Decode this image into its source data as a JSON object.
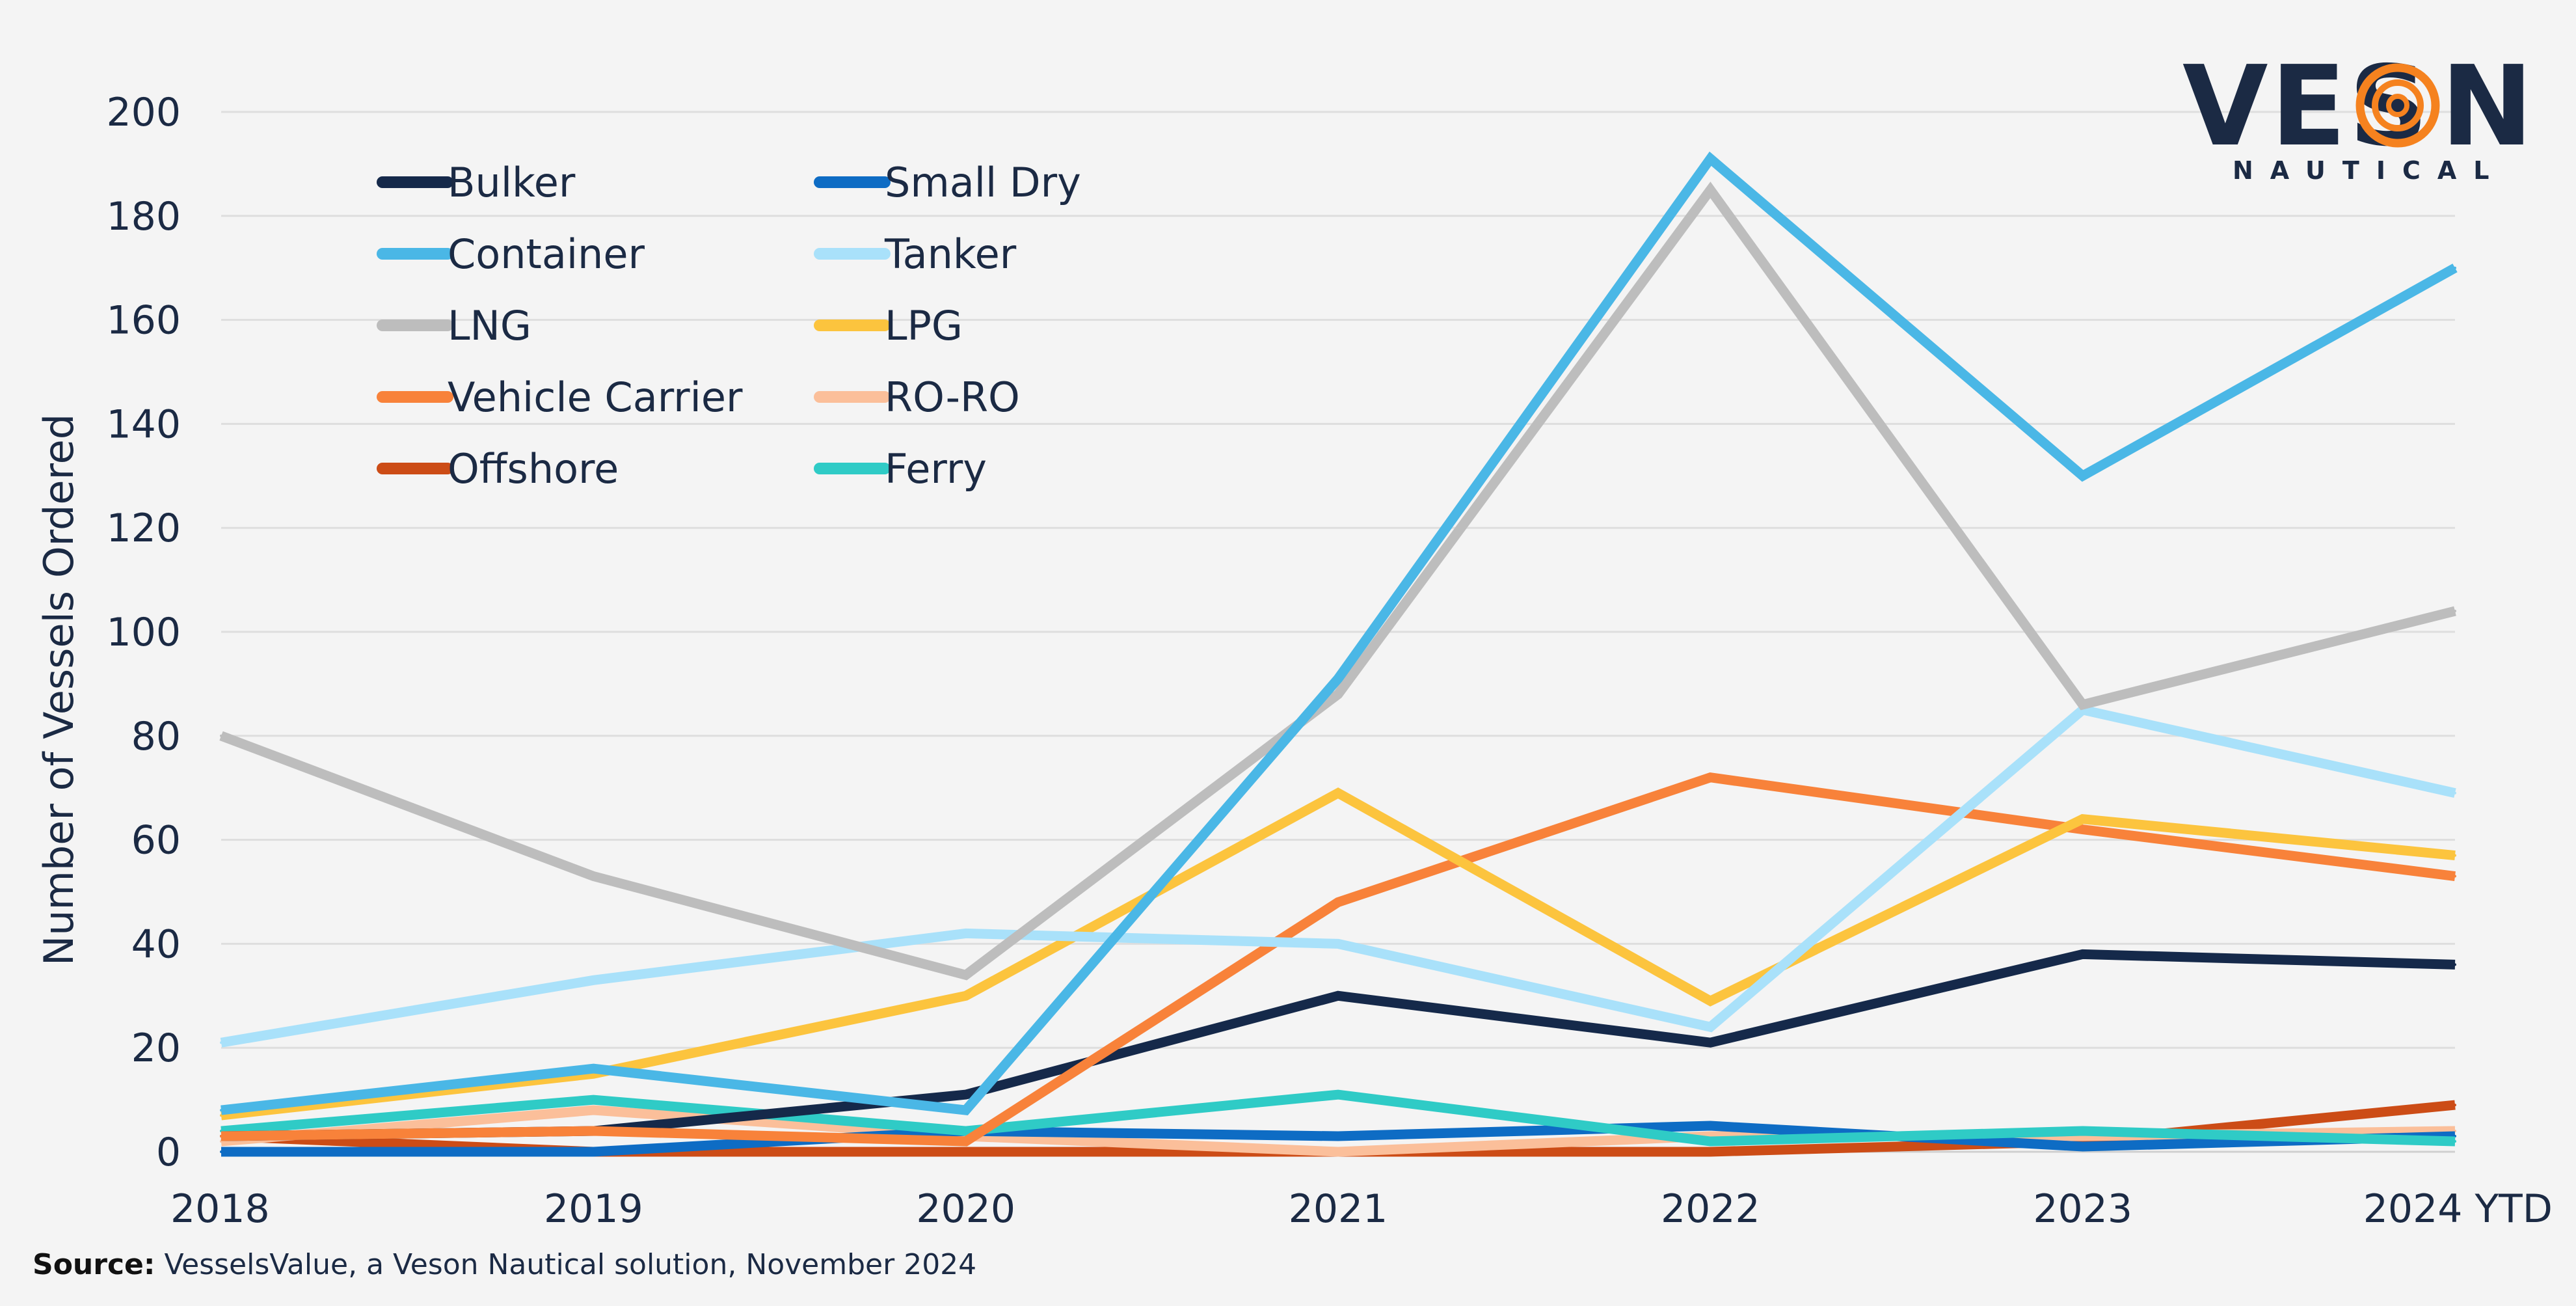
{
  "logo": {
    "letters_left": "VES",
    "letters_right": "N",
    "subtitle": "NAUTICAL",
    "ring_color": "#f5821f"
  },
  "source": {
    "label": "Source:",
    "text": " VesselsValue, a Veson Nautical solution, November 2024"
  },
  "chart_data": {
    "type": "line",
    "title": "",
    "xlabel": "",
    "ylabel": "Number of Vessels Ordered",
    "ylim": [
      0,
      200
    ],
    "yticks": [
      0,
      20,
      40,
      60,
      80,
      100,
      120,
      140,
      160,
      180,
      200
    ],
    "grid": true,
    "legend_position": "top-left",
    "categories": [
      "2018",
      "2019",
      "2020",
      "2021",
      "2022",
      "2023",
      "2024 YTD"
    ],
    "series": [
      {
        "name": "Bulker",
        "color": "#15294a",
        "values": [
          3,
          4,
          11,
          30,
          21,
          38,
          36
        ]
      },
      {
        "name": "Small Dry",
        "color": "#0e6cc4",
        "values": [
          0,
          0,
          4,
          3,
          5,
          1,
          3
        ]
      },
      {
        "name": "Container",
        "color": "#4ab7e6",
        "values": [
          8,
          16,
          8,
          91,
          191,
          130,
          170
        ]
      },
      {
        "name": "Tanker",
        "color": "#a9e1fa",
        "values": [
          21,
          33,
          42,
          40,
          24,
          85,
          69
        ]
      },
      {
        "name": "LNG",
        "color": "#bdbdbd",
        "values": [
          80,
          53,
          34,
          88,
          185,
          86,
          104
        ]
      },
      {
        "name": "LPG",
        "color": "#fcc43e",
        "values": [
          7,
          15,
          30,
          69,
          29,
          64,
          57
        ]
      },
      {
        "name": "Vehicle Carrier",
        "color": "#f8823a",
        "values": [
          3,
          4,
          2,
          48,
          72,
          62,
          53
        ]
      },
      {
        "name": "RO-RO",
        "color": "#fbbf9a",
        "values": [
          2,
          8,
          3,
          0,
          3,
          3,
          4
        ]
      },
      {
        "name": "Offshore",
        "color": "#cc4c16",
        "values": [
          3,
          0,
          0,
          0,
          0,
          2,
          9
        ]
      },
      {
        "name": "Ferry",
        "color": "#2fcbc6",
        "values": [
          4,
          10,
          4,
          11,
          2,
          4,
          2
        ]
      }
    ]
  }
}
